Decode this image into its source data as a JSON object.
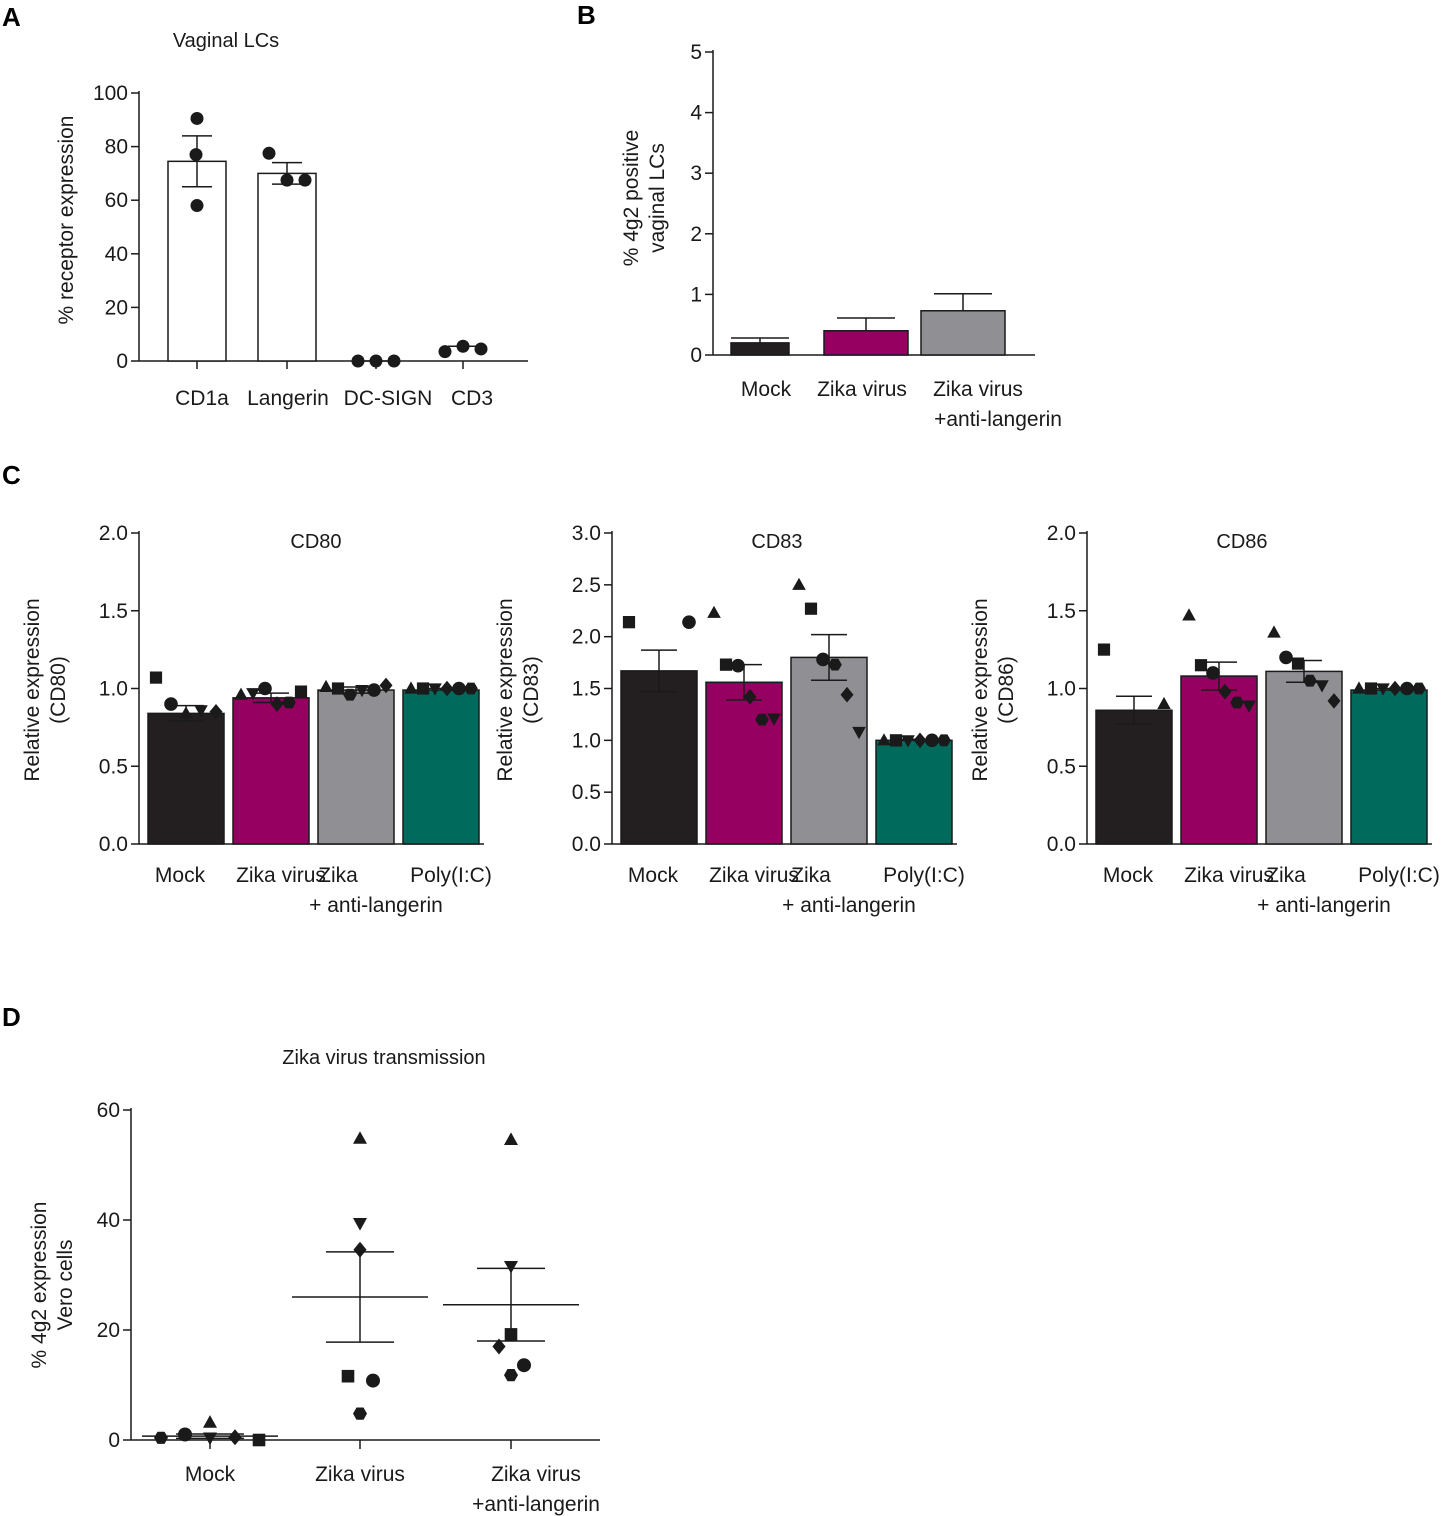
{
  "panel_labels": [
    "A",
    "B",
    "C",
    "D"
  ],
  "colors": {
    "mock": "#231f20",
    "zika": "#960060",
    "anti_langerin": "#909094",
    "polyic": "#006b5c",
    "open_bar": "#ffffff",
    "ink": "#1a1a1a"
  },
  "chart_data": [
    {
      "id": "A",
      "type": "bar",
      "title": "Vaginal LCs",
      "xlabel": "",
      "ylabel": "% receptor expression",
      "ylim": [
        0,
        100
      ],
      "yticks": [
        "0",
        "20",
        "40",
        "60",
        "80",
        "100"
      ],
      "categories": [
        "CD1a",
        "Langerin",
        "DC-SIGN",
        "CD3"
      ],
      "values": [
        74.5,
        70,
        0,
        4.5
      ],
      "sem": [
        9.5,
        4,
        0,
        1
      ],
      "points": [
        [
          90.5,
          77,
          58
        ],
        [
          77.5,
          67.5,
          67.5
        ],
        [
          0,
          0,
          0
        ],
        [
          3.5,
          5.5,
          4.5
        ]
      ],
      "bars_drawn": [
        true,
        true,
        false,
        false
      ]
    },
    {
      "id": "B",
      "type": "bar",
      "title": "",
      "xlabel": "",
      "ylabel": [
        "% 4g2 positive",
        "vaginal LCs"
      ],
      "ylim": [
        0,
        5
      ],
      "yticks": [
        "0",
        "1",
        "2",
        "3",
        "4",
        "5"
      ],
      "categories": [
        [
          "Mock"
        ],
        [
          "Zika virus"
        ],
        [
          "Zika virus",
          "+anti-langerin"
        ]
      ],
      "values": [
        0.2,
        0.4,
        0.73
      ],
      "sem": [
        0.08,
        0.21,
        0.28
      ]
    },
    {
      "id": "C1",
      "type": "bar",
      "title": "CD80",
      "xlabel": "",
      "ylabel": [
        "Relative expression",
        "(CD80)"
      ],
      "ylim": [
        0,
        2
      ],
      "yticks": [
        "0.0",
        "0.5",
        "1.0",
        "1.5",
        "2.0"
      ],
      "categories": [
        [
          "Mock"
        ],
        [
          "Zika virus"
        ],
        [
          "Zika",
          "+ anti-langerin"
        ],
        [
          "Poly(I:C)"
        ]
      ],
      "values": [
        0.84,
        0.94,
        0.99,
        0.99
      ],
      "sem": [
        0.05,
        0.03,
        0.02,
        0.01
      ],
      "points": [
        [
          {
            "s": "sq",
            "v": 1.07
          },
          {
            "s": "ci",
            "v": 0.9
          },
          {
            "s": "tu",
            "v": 0.84
          },
          {
            "s": "td",
            "v": 0.86
          },
          {
            "s": "di",
            "v": 0.85
          }
        ],
        [
          {
            "s": "tu",
            "v": 0.96
          },
          {
            "s": "td",
            "v": 0.97
          },
          {
            "s": "ci",
            "v": 1.0
          },
          {
            "s": "di",
            "v": 0.9
          },
          {
            "s": "he",
            "v": 0.91
          },
          {
            "s": "sq",
            "v": 0.98
          }
        ],
        [
          {
            "s": "tu",
            "v": 1.01
          },
          {
            "s": "sq",
            "v": 1.0
          },
          {
            "s": "he",
            "v": 0.96
          },
          {
            "s": "td",
            "v": 0.99
          },
          {
            "s": "ci",
            "v": 0.99
          },
          {
            "s": "di",
            "v": 1.02
          }
        ],
        [
          {
            "s": "tu",
            "v": 1.0
          },
          {
            "s": "sq",
            "v": 1.0
          },
          {
            "s": "td",
            "v": 1.0
          },
          {
            "s": "di",
            "v": 1.0
          },
          {
            "s": "ci",
            "v": 1.0
          },
          {
            "s": "he",
            "v": 1.0
          }
        ]
      ]
    },
    {
      "id": "C2",
      "type": "bar",
      "title": "CD83",
      "xlabel": "",
      "ylabel": [
        "Relative expression",
        "(CD83)"
      ],
      "ylim": [
        0,
        3
      ],
      "yticks": [
        "0.0",
        "0.5",
        "1.0",
        "1.5",
        "2.0",
        "2.5",
        "3.0"
      ],
      "categories": [
        [
          "Mock"
        ],
        [
          "Zika virus"
        ],
        [
          "Zika",
          "+ anti-langerin"
        ],
        [
          "Poly(I:C)"
        ]
      ],
      "values": [
        1.67,
        1.56,
        1.8,
        1.0
      ],
      "sem": [
        0.2,
        0.17,
        0.22,
        0.01
      ],
      "points": [
        [
          {
            "s": "sq",
            "v": 2.14
          },
          {
            "s": "ci",
            "v": 2.14
          }
        ],
        [
          {
            "s": "tu",
            "v": 2.23
          },
          {
            "s": "sq",
            "v": 1.73
          },
          {
            "s": "ci",
            "v": 1.72
          },
          {
            "s": "di",
            "v": 1.42
          },
          {
            "s": "he",
            "v": 1.2
          },
          {
            "s": "td",
            "v": 1.21
          }
        ],
        [
          {
            "s": "tu",
            "v": 2.5
          },
          {
            "s": "sq",
            "v": 2.27
          },
          {
            "s": "ci",
            "v": 1.78
          },
          {
            "s": "he",
            "v": 1.73
          },
          {
            "s": "di",
            "v": 1.44
          },
          {
            "s": "td",
            "v": 1.08
          }
        ],
        [
          {
            "s": "tu",
            "v": 1.0
          },
          {
            "s": "sq",
            "v": 1.0
          },
          {
            "s": "td",
            "v": 1.0
          },
          {
            "s": "di",
            "v": 1.0
          },
          {
            "s": "ci",
            "v": 1.0
          },
          {
            "s": "he",
            "v": 1.0
          }
        ]
      ]
    },
    {
      "id": "C3",
      "type": "bar",
      "title": "CD86",
      "xlabel": "",
      "ylabel": [
        "Relative expression",
        "(CD86)"
      ],
      "ylim": [
        0,
        2
      ],
      "yticks": [
        "0.0",
        "0.5",
        "1.0",
        "1.5",
        "2.0"
      ],
      "categories": [
        [
          "Mock"
        ],
        [
          "Zika virus"
        ],
        [
          "Zika",
          "+ anti-langerin"
        ],
        [
          "Poly(I:C)"
        ]
      ],
      "values": [
        0.86,
        1.08,
        1.11,
        0.99
      ],
      "sem": [
        0.09,
        0.09,
        0.07,
        0.01
      ],
      "points": [
        [
          {
            "s": "sq",
            "v": 1.25
          },
          {
            "s": "tu",
            "v": 0.9
          }
        ],
        [
          {
            "s": "tu",
            "v": 1.47
          },
          {
            "s": "sq",
            "v": 1.15
          },
          {
            "s": "ci",
            "v": 1.1
          },
          {
            "s": "di",
            "v": 0.98
          },
          {
            "s": "he",
            "v": 0.91
          },
          {
            "s": "td",
            "v": 0.89
          }
        ],
        [
          {
            "s": "tu",
            "v": 1.36
          },
          {
            "s": "ci",
            "v": 1.2
          },
          {
            "s": "sq",
            "v": 1.16
          },
          {
            "s": "he",
            "v": 1.05
          },
          {
            "s": "td",
            "v": 1.02
          },
          {
            "s": "di",
            "v": 0.92
          }
        ],
        [
          {
            "s": "tu",
            "v": 1.0
          },
          {
            "s": "sq",
            "v": 1.0
          },
          {
            "s": "td",
            "v": 1.0
          },
          {
            "s": "di",
            "v": 1.0
          },
          {
            "s": "ci",
            "v": 1.0
          },
          {
            "s": "he",
            "v": 1.0
          }
        ]
      ]
    },
    {
      "id": "D",
      "type": "scatter",
      "title": "Zika virus transmission",
      "xlabel": "",
      "ylabel": [
        "% 4g2 expression",
        "Vero cells"
      ],
      "ylim": [
        0,
        60
      ],
      "yticks": [
        "0",
        "20",
        "40",
        "60"
      ],
      "categories": [
        [
          "Mock"
        ],
        [
          "Zika virus"
        ],
        [
          "Zika virus",
          "+anti-langerin"
        ]
      ],
      "mean": [
        0.7,
        26,
        24.6
      ],
      "sem": [
        0.4,
        8.2,
        6.6
      ],
      "points": [
        [
          {
            "s": "he",
            "v": 0.4
          },
          {
            "s": "ci",
            "v": 1.0
          },
          {
            "s": "tu",
            "v": 3.2
          },
          {
            "s": "td",
            "v": 0.4
          },
          {
            "s": "di",
            "v": 0.5
          },
          {
            "s": "sq",
            "v": 0.0
          }
        ],
        [
          {
            "s": "tu",
            "v": 54.8
          },
          {
            "s": "td",
            "v": 39.4
          },
          {
            "s": "di",
            "v": 34.6
          },
          {
            "s": "sq",
            "v": 11.6
          },
          {
            "s": "ci",
            "v": 10.8
          },
          {
            "s": "he",
            "v": 4.8
          }
        ],
        [
          {
            "s": "tu",
            "v": 54.6
          },
          {
            "s": "td",
            "v": 31.6
          },
          {
            "s": "sq",
            "v": 19.2
          },
          {
            "s": "di",
            "v": 17.0
          },
          {
            "s": "ci",
            "v": 13.6
          },
          {
            "s": "he",
            "v": 11.8
          }
        ]
      ]
    }
  ]
}
